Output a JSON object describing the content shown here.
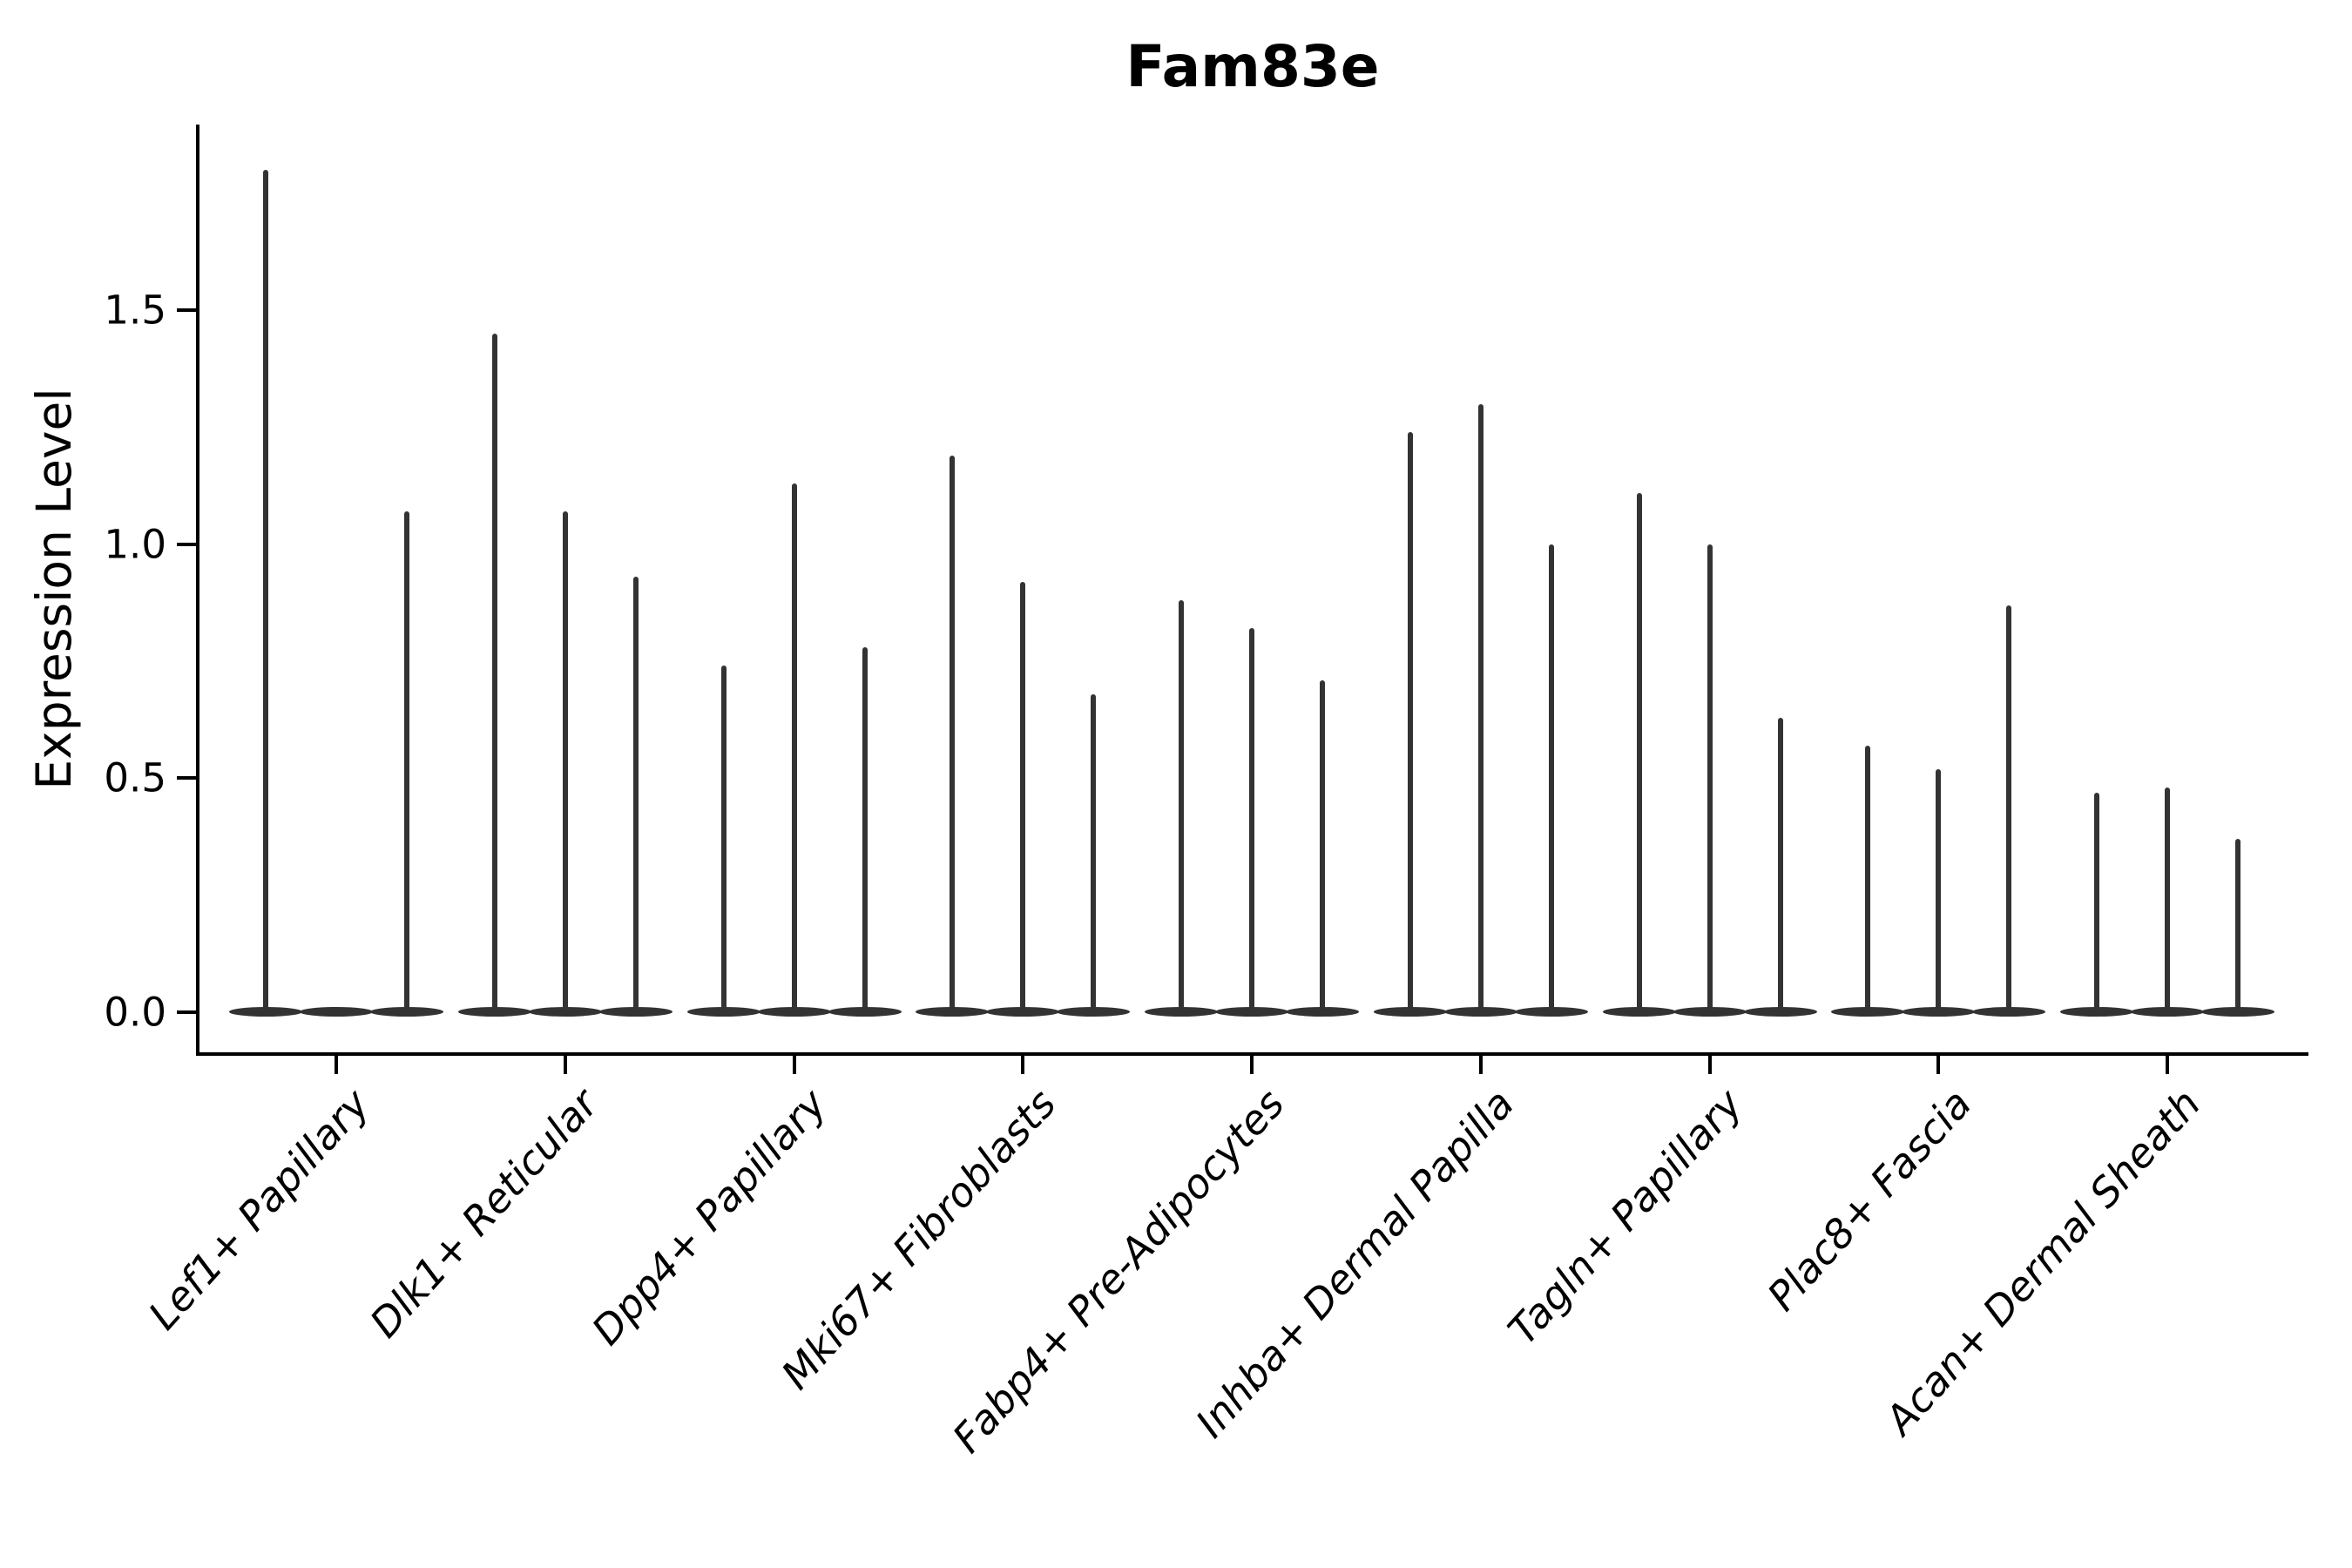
{
  "title": "Fam83e",
  "ylabel": "Expression Level",
  "colors": {
    "violin_fill": "#333333",
    "axis": "#000000",
    "text": "#000000",
    "background": "#ffffff"
  },
  "chart_data": {
    "type": "violin",
    "title": "Fam83e",
    "xlabel": "",
    "ylabel": "Expression Level",
    "categories": [
      "Lef1+ Papillary",
      "Dlk1+ Reticular",
      "Dpp4+ Papillary",
      "Mki67+ Fibroblasts",
      "Fabp4+ Pre-Adipocytes",
      "Inhba+ Dermal Papilla",
      "Tagln+ Papillary",
      "Plac8+ Fascia",
      "Acan+ Dermal Sheath"
    ],
    "series": [
      {
        "name": "violin-left",
        "values": [
          1.8,
          1.45,
          0.74,
          1.19,
          0.88,
          1.24,
          1.11,
          0.57,
          0.47
        ]
      },
      {
        "name": "violin-middle",
        "values": [
          0.0,
          1.07,
          1.13,
          0.92,
          0.82,
          1.3,
          1.0,
          0.52,
          0.48
        ]
      },
      {
        "name": "violin-right",
        "values": [
          1.07,
          0.93,
          0.78,
          0.68,
          0.71,
          1.0,
          0.63,
          0.87,
          0.37
        ]
      }
    ],
    "yticks": [
      0.0,
      0.5,
      1.0,
      1.5
    ],
    "ylim": [
      -0.09,
      1.89
    ],
    "grid": false,
    "legend": "none",
    "notes": "Each category shows three narrow violins flattened at 0 with a thin spike to the max expression value; first category middle violin has no spike."
  }
}
